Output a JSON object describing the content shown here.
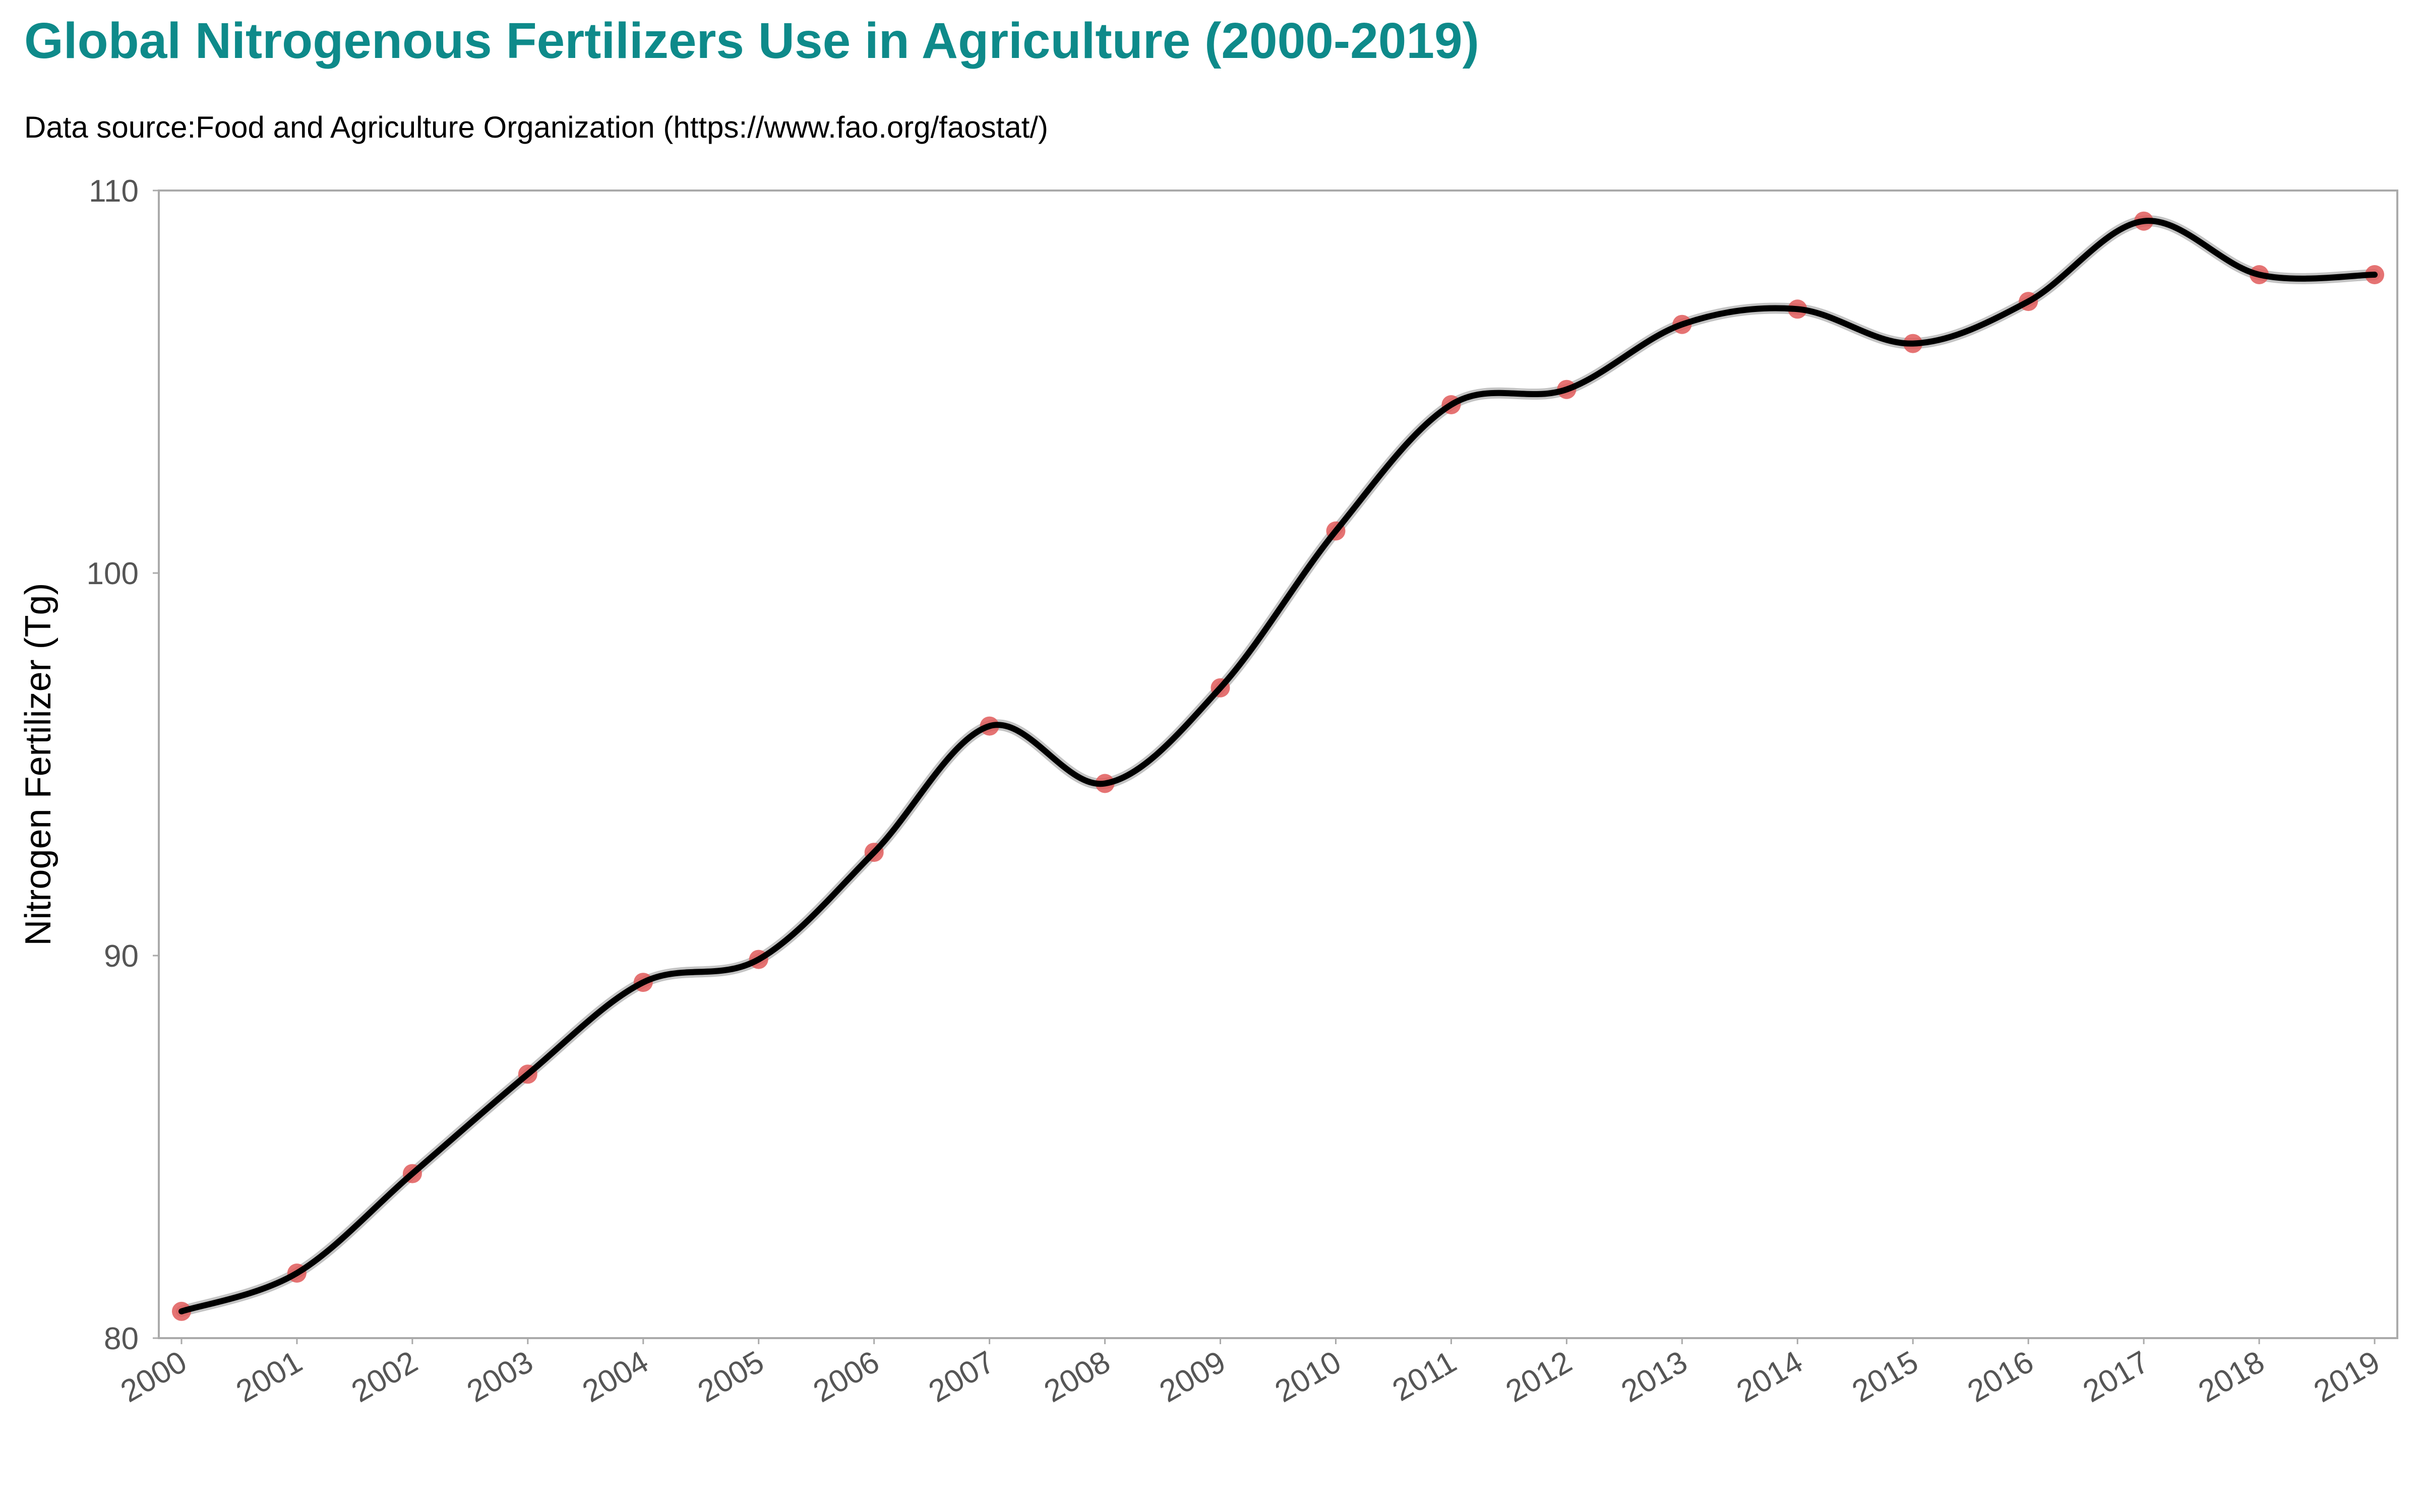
{
  "chart_data": {
    "type": "line",
    "title": "Global Nitrogenous Fertilizers Use in Agriculture (2000-2019)",
    "subtitle": "Data source:Food and Agriculture Organization (https://www.fao.org/faostat/)",
    "xlabel": "",
    "ylabel": "Nitrogen Fertilizer (Tg)",
    "x": [
      2000,
      2001,
      2002,
      2003,
      2004,
      2005,
      2006,
      2007,
      2008,
      2009,
      2010,
      2011,
      2012,
      2013,
      2014,
      2015,
      2016,
      2017,
      2018,
      2019
    ],
    "y": [
      80.7,
      81.7,
      84.3,
      86.9,
      89.3,
      89.9,
      92.7,
      96.0,
      94.5,
      97.0,
      101.1,
      104.4,
      104.8,
      106.5,
      106.9,
      106.0,
      107.1,
      109.2,
      107.8,
      107.8
    ],
    "ylim": [
      80,
      110
    ],
    "yticks": [
      80,
      90,
      100,
      110
    ],
    "xlim": [
      2000,
      2019
    ],
    "xtick_labels": [
      "2000",
      "2001",
      "2002",
      "2003",
      "2004",
      "2005",
      "2006",
      "2007",
      "2008",
      "2009",
      "2010",
      "2011",
      "2012",
      "2013",
      "2014",
      "2015",
      "2016",
      "2017",
      "2018",
      "2019"
    ],
    "grid": false,
    "legend": "none",
    "colors": {
      "title": "#0e8a8a",
      "line": "#000000",
      "line_shadow": "#b5b5b5",
      "markers": "#e05a5a",
      "axis_frame": "#aaaaaa",
      "tick_text": "#555555"
    }
  }
}
